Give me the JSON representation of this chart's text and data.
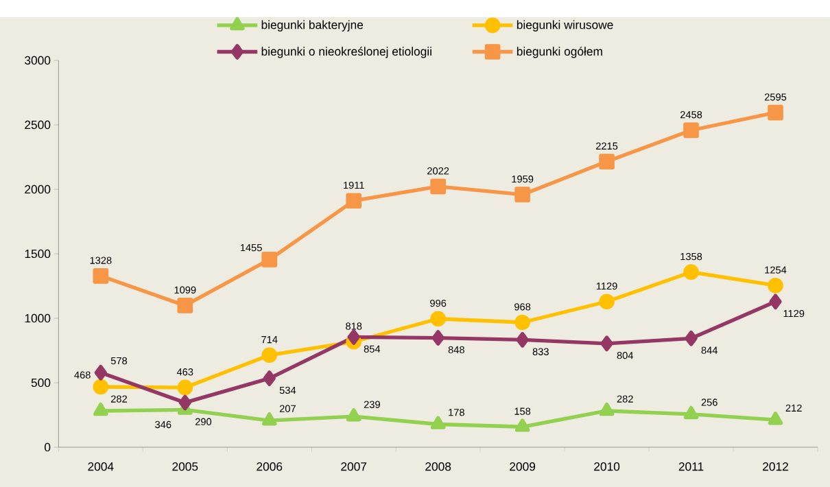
{
  "chart_data": {
    "type": "line",
    "categories": [
      "2004",
      "2005",
      "2006",
      "2007",
      "2008",
      "2009",
      "2010",
      "2011",
      "2012"
    ],
    "series": [
      {
        "name": "biegunki bakteryjne",
        "color": "#92d050",
        "marker": "triangle",
        "values": [
          282,
          290,
          207,
          239,
          178,
          158,
          282,
          256,
          212
        ]
      },
      {
        "name": "biegunki wirusowe",
        "color": "#ffc000",
        "marker": "circle",
        "values": [
          468,
          463,
          714,
          818,
          996,
          968,
          1129,
          1358,
          1254
        ]
      },
      {
        "name": "biegunki o nieokreślonej etiologii",
        "color": "#953764",
        "marker": "diamond",
        "values": [
          578,
          346,
          534,
          854,
          848,
          833,
          804,
          844,
          1129
        ]
      },
      {
        "name": "biegunki ogółem",
        "color": "#f79646",
        "marker": "square",
        "values": [
          1328,
          1099,
          1455,
          1911,
          2022,
          1959,
          2215,
          2458,
          2595
        ]
      }
    ],
    "ylim": [
      0,
      3000
    ],
    "yticks": [
      0,
      500,
      1000,
      1500,
      2000,
      2500,
      3000
    ],
    "data_labels": true,
    "legend": "top",
    "grid": false
  }
}
